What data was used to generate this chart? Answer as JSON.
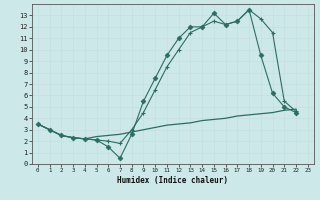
{
  "xlabel": "Humidex (Indice chaleur)",
  "bg_color": "#cce8e8",
  "line_color": "#2a6e62",
  "grid_color": "#c8dede",
  "xlim": [
    -0.5,
    23.5
  ],
  "ylim": [
    0,
    14
  ],
  "xticks": [
    0,
    1,
    2,
    3,
    4,
    5,
    6,
    7,
    8,
    9,
    10,
    11,
    12,
    13,
    14,
    15,
    16,
    17,
    18,
    19,
    20,
    21,
    22,
    23
  ],
  "yticks": [
    0,
    1,
    2,
    3,
    4,
    5,
    6,
    7,
    8,
    9,
    10,
    11,
    12,
    13
  ],
  "line1_x": [
    0,
    1,
    2,
    3,
    4,
    5,
    6,
    7,
    8,
    9,
    10,
    11,
    12,
    13,
    14,
    15,
    16,
    17,
    18,
    19,
    20,
    21,
    22
  ],
  "line1_y": [
    3.5,
    3.0,
    2.5,
    2.3,
    2.2,
    2.1,
    1.5,
    0.5,
    2.6,
    5.5,
    7.5,
    9.5,
    11.0,
    12.0,
    12.0,
    13.2,
    12.2,
    12.5,
    13.5,
    9.5,
    6.2,
    5.0,
    4.5
  ],
  "line2_x": [
    0,
    1,
    2,
    3,
    4,
    5,
    6,
    7,
    8,
    9,
    10,
    11,
    12,
    13,
    14,
    15,
    16,
    17,
    18,
    19,
    20,
    21,
    22
  ],
  "line2_y": [
    3.5,
    3.0,
    2.5,
    2.3,
    2.2,
    2.1,
    2.0,
    1.8,
    3.0,
    4.5,
    6.5,
    8.5,
    10.0,
    11.5,
    12.0,
    12.5,
    12.2,
    12.5,
    13.5,
    12.7,
    11.5,
    5.5,
    4.6
  ],
  "line3_x": [
    0,
    1,
    2,
    3,
    4,
    5,
    6,
    7,
    8,
    9,
    10,
    11,
    12,
    13,
    14,
    15,
    16,
    17,
    18,
    19,
    20,
    21,
    22
  ],
  "line3_y": [
    3.5,
    3.0,
    2.5,
    2.3,
    2.2,
    2.4,
    2.5,
    2.6,
    2.8,
    3.0,
    3.2,
    3.4,
    3.5,
    3.6,
    3.8,
    3.9,
    4.0,
    4.2,
    4.3,
    4.4,
    4.5,
    4.7,
    4.8
  ]
}
